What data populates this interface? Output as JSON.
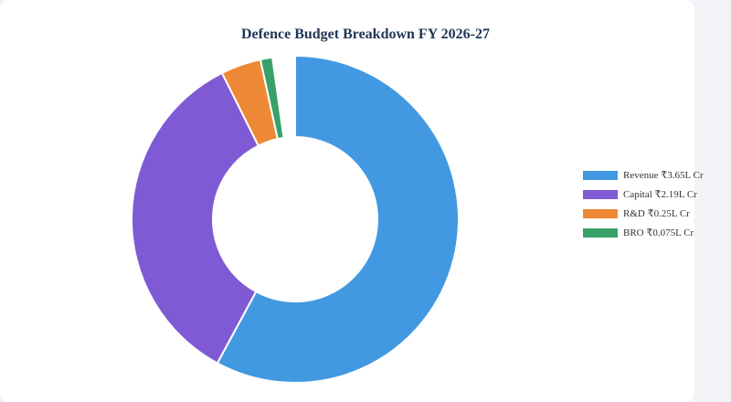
{
  "chart_data": {
    "type": "pie",
    "variant": "donut",
    "title": "Defence Budget Breakdown FY 2026-27",
    "unit": "₹ lakh crore",
    "categories": [
      "Revenue",
      "Capital",
      "R&D",
      "BRO"
    ],
    "values": [
      3.65,
      2.19,
      0.25,
      0.075
    ],
    "colors": [
      "#4299e1",
      "#805ad5",
      "#ed8936",
      "#38a169"
    ],
    "legend_labels": [
      "Revenue ₹3.65L Cr",
      "Capital ₹2.19L Cr",
      "R&D ₹0.25L Cr",
      "BRO ₹0.075L Cr"
    ],
    "legend_position": "right",
    "sweep_degrees": 352
  }
}
